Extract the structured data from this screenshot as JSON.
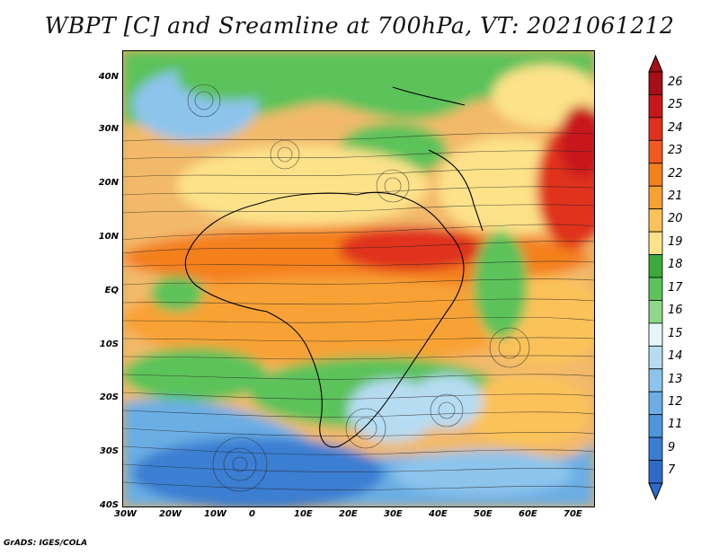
{
  "title": "WBPT [C] and Sreamline at 700hPa, VT: 2021061212",
  "credit": "GrADS: IGES/COLA",
  "map": {
    "lon_labels": [
      "30W",
      "20W",
      "10W",
      "0",
      "10E",
      "20E",
      "30E",
      "40E",
      "50E",
      "60E",
      "70E"
    ],
    "lat_labels": [
      "40N",
      "30N",
      "20N",
      "10N",
      "EQ",
      "10S",
      "20S",
      "30S",
      "40S"
    ],
    "lon_range": [
      -30,
      75
    ],
    "lat_range": [
      -40,
      45
    ]
  },
  "colorbar": {
    "labels": [
      "26",
      "25",
      "24",
      "23",
      "22",
      "21",
      "20",
      "19",
      "18",
      "17",
      "16",
      "15",
      "14",
      "13",
      "12",
      "11",
      "9",
      "7"
    ],
    "colors": [
      "#a50f15",
      "#c8171c",
      "#e0301e",
      "#f05a1e",
      "#f4801e",
      "#f8a234",
      "#fbc25a",
      "#fde28a",
      "#3aab3c",
      "#5cc25a",
      "#8fd88a",
      "#e6f6f8",
      "#b6dcf2",
      "#8cc4ec",
      "#6aaee4",
      "#4d96dc",
      "#3a7ed2",
      "#2f6acb"
    ]
  }
}
